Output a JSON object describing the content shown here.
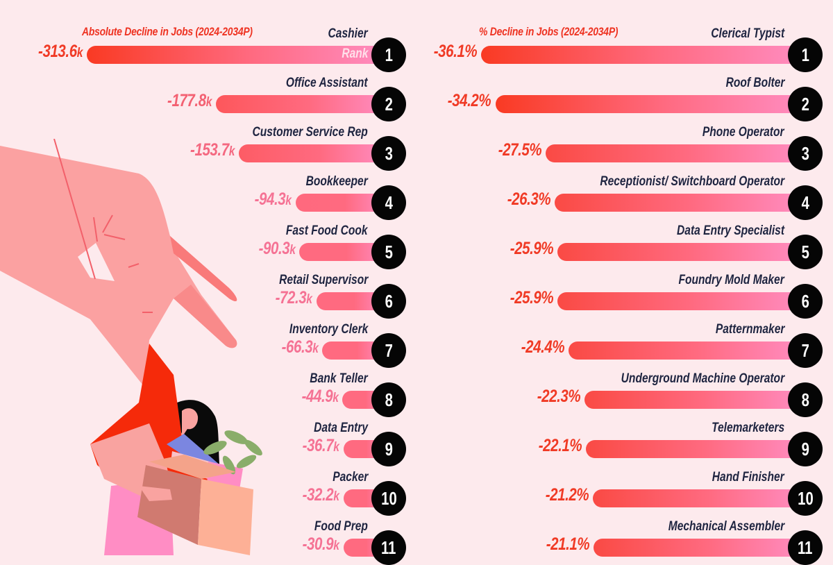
{
  "colors": {
    "background": "#fdeaed",
    "bar_start": "#f93a23",
    "bar_mid": "#ff6a80",
    "bar_end": "#ff8cc0",
    "value_strong": "#f03a25",
    "value_light": "#f57294",
    "label": "#1e2440",
    "rank_circle": "#050505"
  },
  "chart_data": [
    {
      "type": "bar",
      "orientation": "horizontal",
      "title": "Absolute Decline in Jobs (2024-2034P)",
      "rank_label": "Rank",
      "unit": "k",
      "xlabel": "",
      "ylabel": "",
      "categories": [
        "Cashier",
        "Office Assistant",
        "Customer Service Rep",
        "Bookkeeper",
        "Fast Food Cook",
        "Retail Supervisor",
        "Inventory Clerk",
        "Bank Teller",
        "Data Entry",
        "Packer",
        "Food Prep"
      ],
      "ranks": [
        1,
        2,
        3,
        4,
        5,
        6,
        7,
        8,
        9,
        10,
        11
      ],
      "values": [
        -313.6,
        -177.8,
        -153.7,
        -94.3,
        -90.3,
        -72.3,
        -66.3,
        -44.9,
        -36.7,
        -32.2,
        -30.9
      ],
      "value_labels": [
        "-313.6",
        "-177.8",
        "-153.7",
        "-94.3",
        "-90.3",
        "-72.3",
        "-66.3",
        "-44.9",
        "-36.7",
        "-32.2",
        "-30.9"
      ],
      "xlim": [
        -313.6,
        0
      ]
    },
    {
      "type": "bar",
      "orientation": "horizontal",
      "title": "% Decline in Jobs (2024-2034P)",
      "unit": "%",
      "xlabel": "",
      "ylabel": "",
      "categories": [
        "Clerical Typist",
        "Roof Bolter",
        "Phone Operator",
        "Receptionist/ Switchboard Operator",
        "Data Entry Specialist",
        "Foundry Mold Maker",
        "Patternmaker",
        "Underground Machine Operator",
        "Telemarketers",
        "Hand Finisher",
        "Mechanical Assembler"
      ],
      "ranks": [
        1,
        2,
        3,
        4,
        5,
        6,
        7,
        8,
        9,
        10,
        11
      ],
      "values": [
        -36.1,
        -34.2,
        -27.5,
        -26.3,
        -25.9,
        -25.9,
        -24.4,
        -22.3,
        -22.1,
        -21.2,
        -21.1
      ],
      "value_labels": [
        "-36.1",
        "-34.2",
        "-27.5",
        "-26.3",
        "-25.9",
        "-25.9",
        "-24.4",
        "-22.3",
        "-22.1",
        "-21.2",
        "-21.1"
      ],
      "xlim": [
        -36.1,
        0
      ]
    }
  ],
  "illustration": {
    "description": "Giant hand lifting a woman in red shirt carrying a box with a plant and folders",
    "colors": {
      "hand": "#fba1a1",
      "hand_shadow": "#f97a7a",
      "shirt": "#f52a0a",
      "hair": "#0a0a0a",
      "skin": "#f9a3a0",
      "pants": "#ff8dc4",
      "box_front": "#fdb096",
      "box_side": "#d07a70",
      "folder": "#7b86e0",
      "plant": "#8aad6a"
    }
  }
}
